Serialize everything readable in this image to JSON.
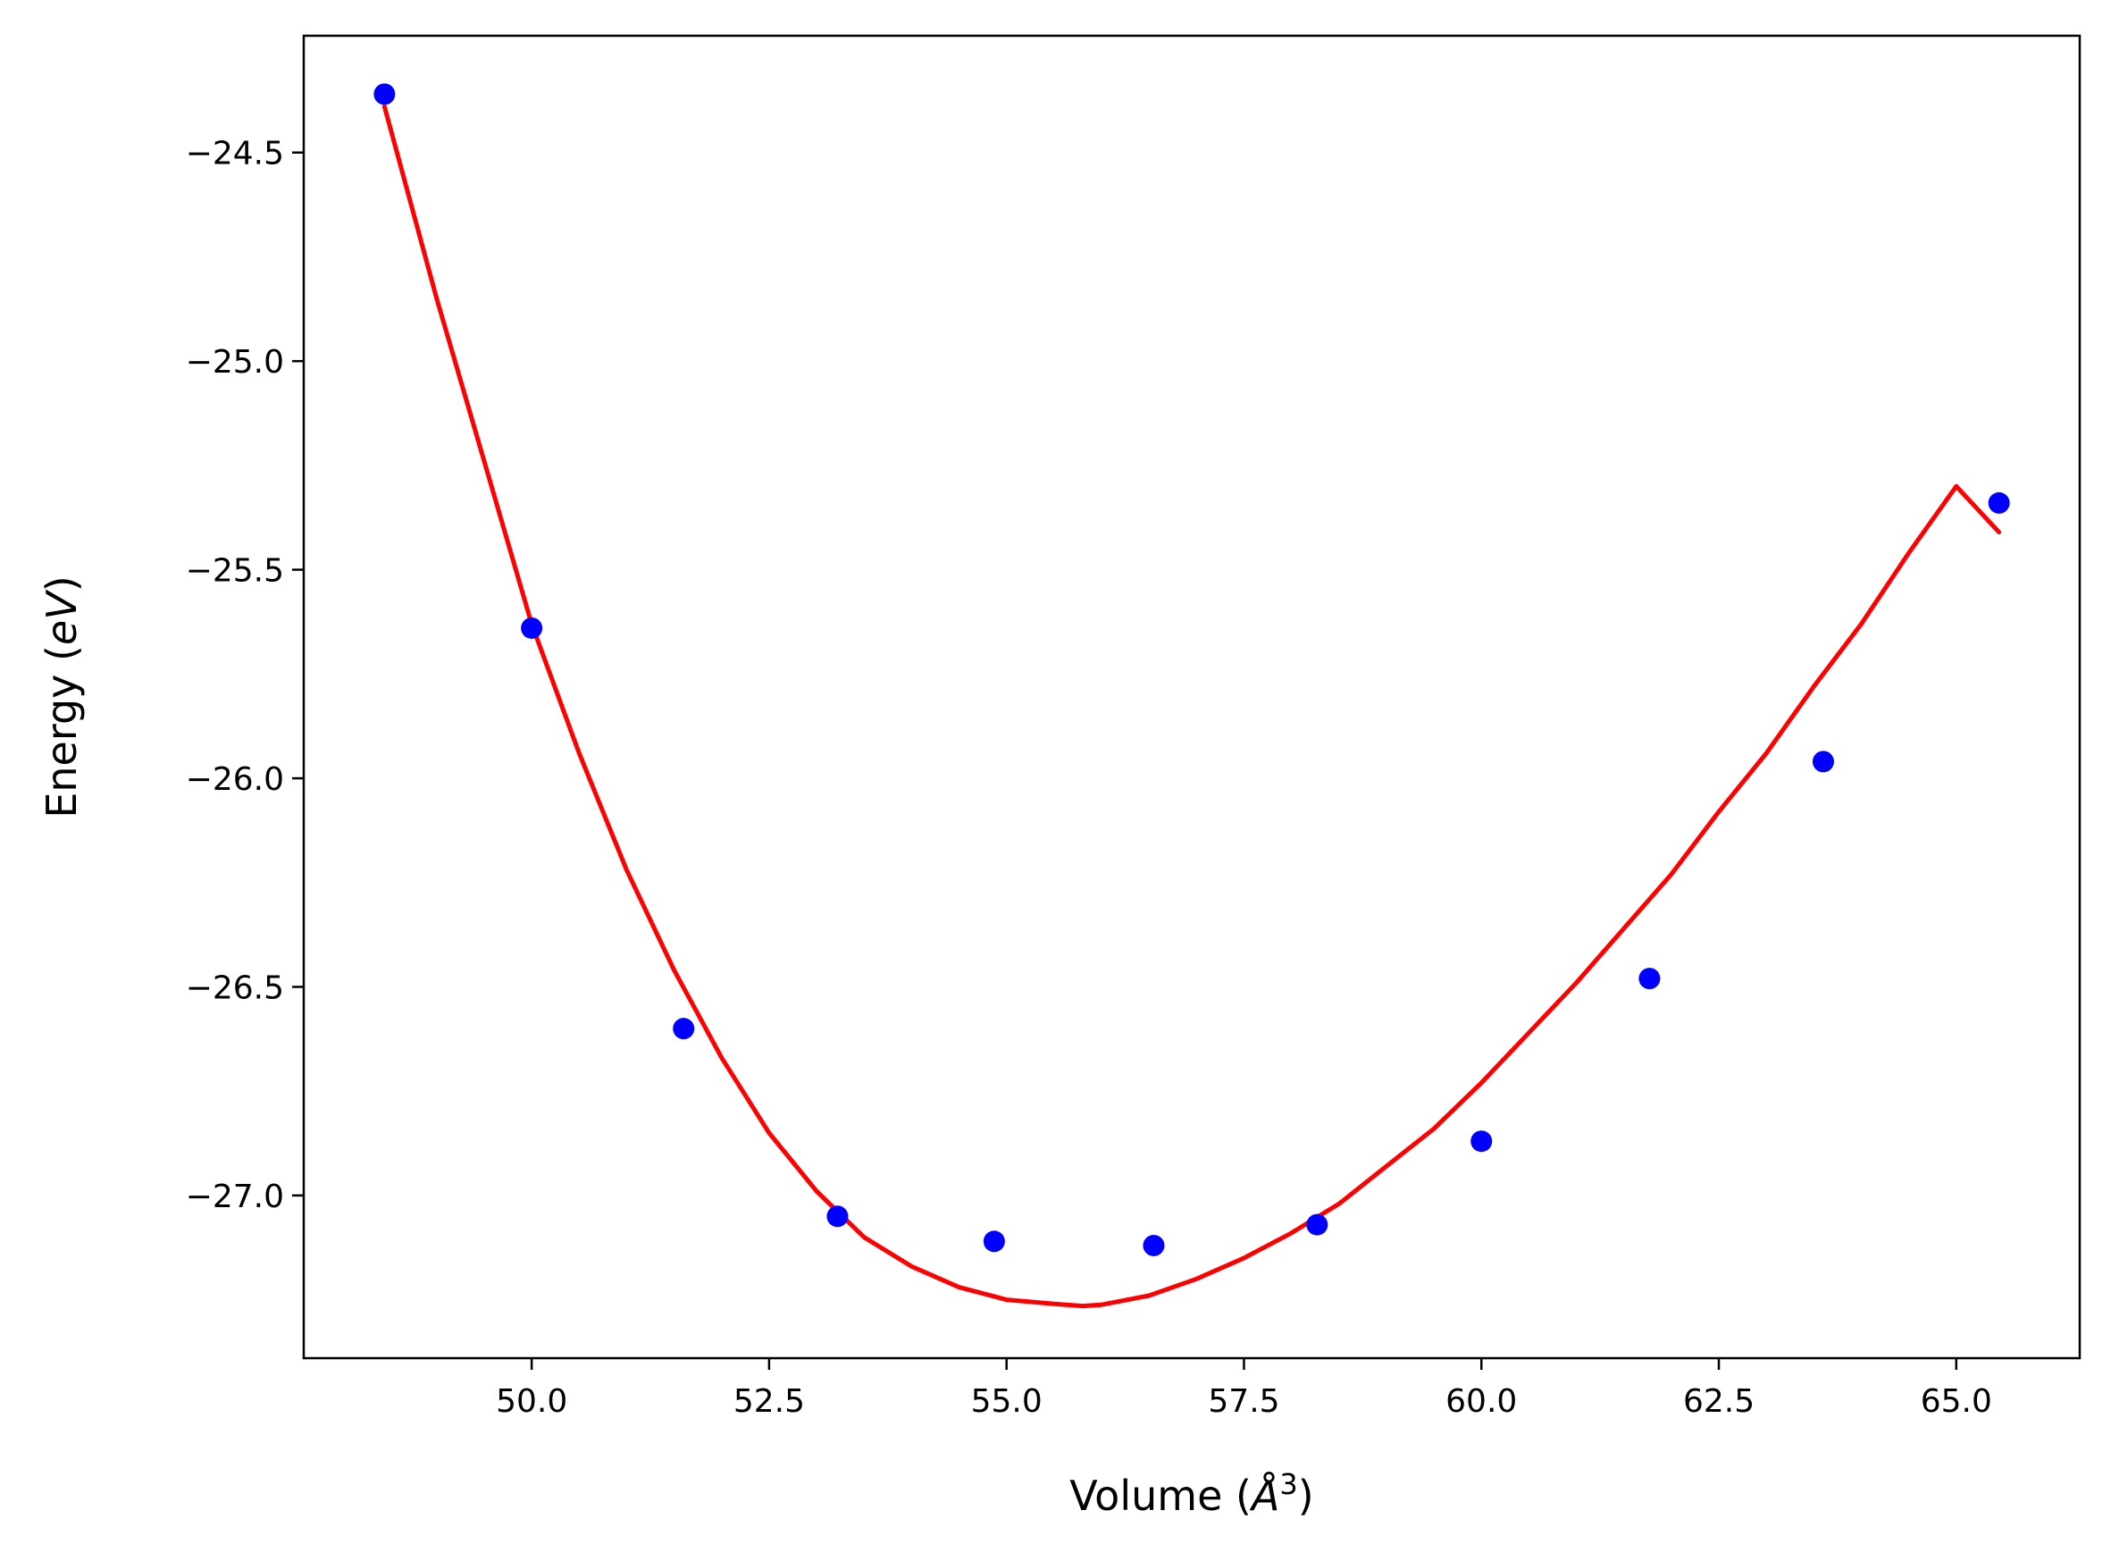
{
  "chart_data": {
    "type": "scatter",
    "xlabel_main": "Volume (",
    "xlabel_symbol": "Å",
    "xlabel_sup": "3",
    "xlabel_close": ")",
    "ylabel_main": "Energy (",
    "ylabel_symbol": "eV",
    "ylabel_close": ")",
    "xlim": [
      47.6,
      66.3
    ],
    "ylim": [
      -27.39,
      -24.22
    ],
    "x_ticks": [
      50.0,
      52.5,
      55.0,
      57.5,
      60.0,
      62.5,
      65.0
    ],
    "x_tick_labels": [
      "50.0",
      "52.5",
      "55.0",
      "57.5",
      "60.0",
      "62.5",
      "65.0"
    ],
    "y_ticks": [
      -24.5,
      -25.0,
      -25.5,
      -26.0,
      -26.5,
      -27.0
    ],
    "y_tick_labels": [
      "−24.5",
      "−25.0",
      "−25.5",
      "−26.0",
      "−26.5",
      "−27.0"
    ],
    "grid": false,
    "series": [
      {
        "kind": "points",
        "color": "#0000ff",
        "x": [
          48.45,
          50.0,
          51.6,
          53.22,
          54.87,
          56.55,
          58.27,
          60.0,
          61.77,
          63.6,
          65.45
        ],
        "y": [
          -24.36,
          -25.64,
          -26.6,
          -27.05,
          -27.11,
          -27.12,
          -27.07,
          -26.87,
          -26.48,
          -25.96,
          -25.34
        ]
      },
      {
        "kind": "fit",
        "color": "#ff0000",
        "x": [
          48.45,
          49.0,
          49.5,
          50.0,
          50.5,
          51.0,
          51.5,
          52.0,
          52.5,
          53.0,
          53.5,
          54.0,
          54.5,
          55.0,
          55.5,
          55.8,
          56.0,
          56.5,
          57.0,
          57.5,
          58.0,
          58.5,
          59.0,
          59.5,
          60.0,
          60.5,
          61.0,
          61.5,
          62.0,
          62.5,
          63.0,
          63.5,
          64.0,
          64.5,
          65.0,
          65.45
        ],
        "y": [
          -24.39,
          -24.85,
          -25.24,
          -25.63,
          -25.94,
          -26.22,
          -26.46,
          -26.67,
          -26.85,
          -26.99,
          -27.1,
          -27.17,
          -27.22,
          -27.25,
          -27.26,
          -27.265,
          -27.262,
          -27.24,
          -27.2,
          -27.15,
          -27.09,
          -27.02,
          -26.93,
          -26.84,
          -26.73,
          -26.61,
          -26.49,
          -26.36,
          -26.23,
          -26.08,
          -25.94,
          -25.78,
          -25.63,
          -25.46,
          -25.3,
          -25.41
        ]
      }
    ]
  }
}
